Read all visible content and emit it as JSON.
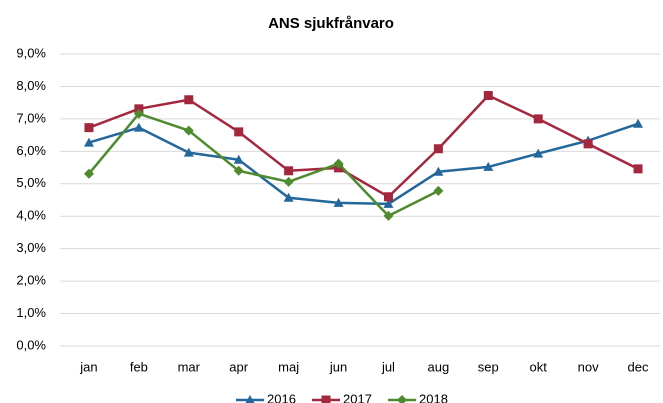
{
  "chart_data": {
    "type": "line",
    "title": "ANS sjukfrånvaro",
    "categories": [
      "jan",
      "feb",
      "mar",
      "apr",
      "maj",
      "jun",
      "jul",
      "aug",
      "sep",
      "okt",
      "nov",
      "dec"
    ],
    "series": [
      {
        "name": "2016",
        "color": "#23679b",
        "marker": "triangle",
        "values": [
          6.27,
          6.73,
          5.96,
          5.74,
          4.57,
          4.41,
          4.38,
          5.37,
          5.52,
          5.93,
          6.33,
          6.85
        ]
      },
      {
        "name": "2017",
        "color": "#a3283e",
        "marker": "square",
        "values": [
          6.73,
          7.31,
          7.59,
          6.6,
          5.4,
          5.49,
          4.6,
          6.08,
          7.72,
          7.0,
          6.23,
          5.46
        ]
      },
      {
        "name": "2018",
        "color": "#4e8a2e",
        "marker": "diamond",
        "values": [
          5.31,
          7.16,
          6.64,
          5.4,
          5.06,
          5.62,
          4.01,
          4.78,
          null,
          null,
          null,
          null
        ]
      }
    ],
    "ylim": [
      0,
      9
    ],
    "yticks": [
      {
        "value": 0,
        "label": "0,0%"
      },
      {
        "value": 1,
        "label": "1,0%"
      },
      {
        "value": 2,
        "label": "2,0%"
      },
      {
        "value": 3,
        "label": "3,0%"
      },
      {
        "value": 4,
        "label": "4,0%"
      },
      {
        "value": 5,
        "label": "5,0%"
      },
      {
        "value": 6,
        "label": "6,0%"
      },
      {
        "value": 7,
        "label": "7,0%"
      },
      {
        "value": 8,
        "label": "8,0%"
      },
      {
        "value": 9,
        "label": "9,0%"
      }
    ],
    "grid": true,
    "legend": "bottom"
  }
}
